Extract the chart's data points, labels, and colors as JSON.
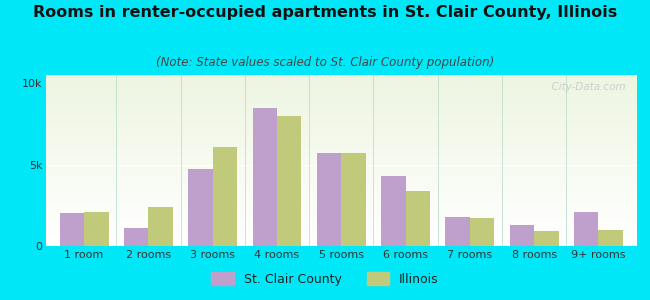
{
  "title": "Rooms in renter-occupied apartments in St. Clair County, Illinois",
  "subtitle": "(Note: State values scaled to St. Clair County population)",
  "categories": [
    "1 room",
    "2 rooms",
    "3 rooms",
    "4 rooms",
    "5 rooms",
    "6 rooms",
    "7 rooms",
    "8 rooms",
    "9+ rooms"
  ],
  "stclair_values": [
    2000,
    1100,
    4700,
    8500,
    5700,
    4300,
    1800,
    1300,
    2100
  ],
  "illinois_values": [
    2100,
    2400,
    6100,
    8000,
    5700,
    3400,
    1700,
    900,
    1000
  ],
  "stclair_color": "#bf9fcc",
  "illinois_color": "#c0ca7a",
  "background_outer": "#00e8f8",
  "ylabel_ticks": [
    "0",
    "5k",
    "10k"
  ],
  "ytick_values": [
    0,
    5000,
    10000
  ],
  "ylim": [
    0,
    10500
  ],
  "watermark": "  City-Data.com",
  "legend_labels": [
    "St. Clair County",
    "Illinois"
  ],
  "bar_width": 0.38,
  "title_fontsize": 11.5,
  "subtitle_fontsize": 8.5,
  "axis_fontsize": 8,
  "legend_fontsize": 9
}
